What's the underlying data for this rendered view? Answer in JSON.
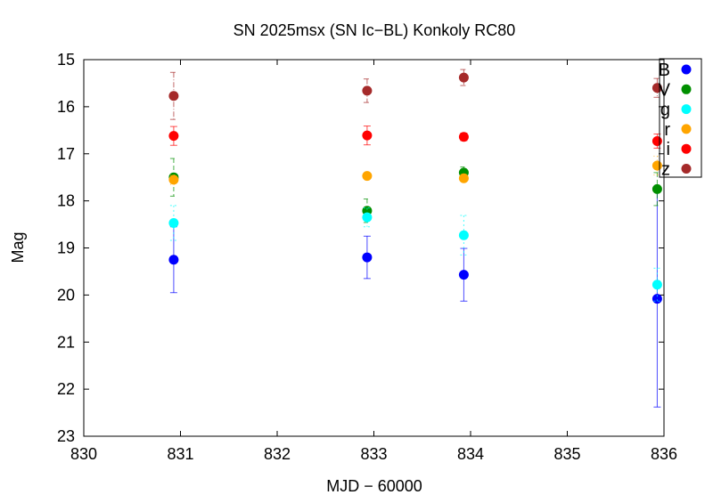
{
  "chart_data": {
    "type": "scatter",
    "title": "SN 2025msx (SN Ic−BL) Konkoly RC80",
    "xlabel": "MJD − 60000",
    "ylabel": "Mag",
    "xlim": [
      830,
      836
    ],
    "ylim": [
      23,
      15
    ],
    "y_inverted": true,
    "xticks": [
      "830",
      "831",
      "832",
      "833",
      "834",
      "835",
      "836"
    ],
    "yticks": [
      "15",
      "16",
      "17",
      "18",
      "19",
      "20",
      "21",
      "22",
      "23"
    ],
    "grid": false,
    "legend_position": "top-right",
    "series": [
      {
        "name": "B",
        "color": "#0000ff",
        "dash": "",
        "x": [
          830.93,
          832.93,
          833.93,
          835.93
        ],
        "y": [
          19.25,
          19.2,
          19.57,
          20.08
        ],
        "err": [
          0.7,
          0.45,
          0.56,
          2.3
        ]
      },
      {
        "name": "V",
        "color": "#008f00",
        "dash": "5,3",
        "x": [
          830.93,
          832.93,
          833.93,
          835.93
        ],
        "y": [
          17.5,
          18.21,
          17.4,
          17.75
        ],
        "err": [
          0.4,
          0.25,
          0.12,
          0.35
        ]
      },
      {
        "name": "g",
        "color": "#00ffff",
        "dash": "2,3",
        "x": [
          830.93,
          832.93,
          833.93,
          835.93
        ],
        "y": [
          18.47,
          18.35,
          18.73,
          19.78
        ],
        "err": [
          0.37,
          0.2,
          0.42,
          0.35
        ]
      },
      {
        "name": "r",
        "color": "#ffa500",
        "dash": "1,3",
        "x": [
          830.93,
          832.93,
          833.93,
          835.93
        ],
        "y": [
          17.55,
          17.47,
          17.52,
          17.25
        ],
        "err": [
          0.1,
          0.05,
          0.06,
          0.2
        ]
      },
      {
        "name": "i",
        "color": "#ff0000",
        "dash": "",
        "x": [
          830.93,
          832.93,
          833.93,
          835.93
        ],
        "y": [
          16.62,
          16.61,
          16.64,
          16.73
        ],
        "err": [
          0.2,
          0.2,
          0.08,
          0.15
        ]
      },
      {
        "name": "z",
        "color": "#a52a2a",
        "dash": "6,2,1,2",
        "x": [
          830.93,
          832.93,
          833.93,
          835.93
        ],
        "y": [
          15.77,
          15.66,
          15.38,
          15.6
        ],
        "err": [
          0.5,
          0.25,
          0.17,
          0.2
        ]
      }
    ]
  }
}
